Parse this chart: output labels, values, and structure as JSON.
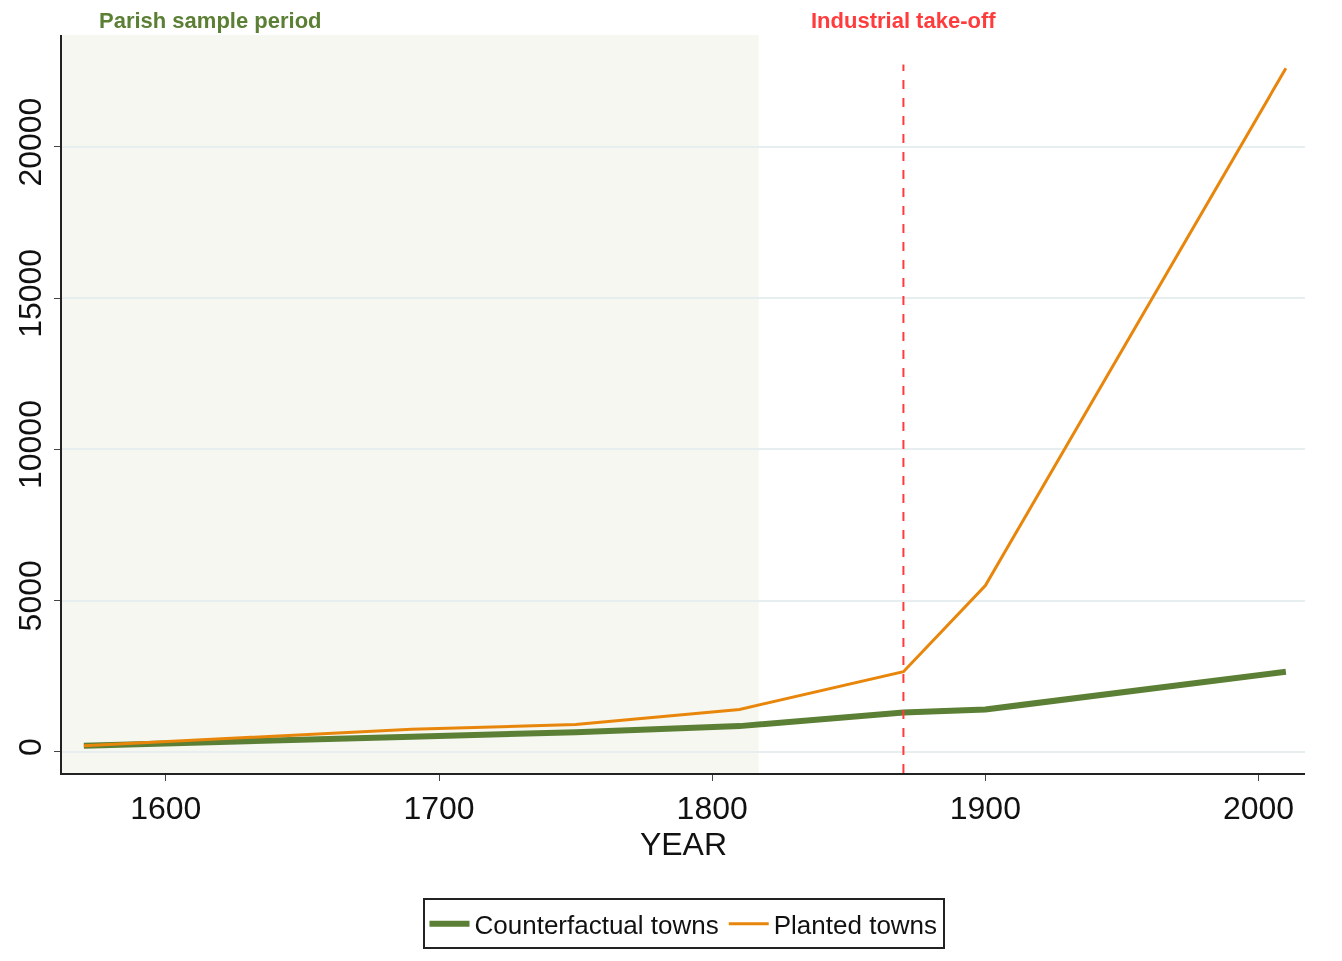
{
  "chart_data": {
    "type": "line",
    "xlabel": "YEAR",
    "x": [
      1570,
      1690,
      1750,
      1810,
      1870,
      1900,
      2010
    ],
    "series": [
      {
        "name": "Counterfactual towns",
        "color": "#5b7f34",
        "values": [
          200,
          500,
          650,
          850,
          1300,
          1400,
          2650
        ]
      },
      {
        "name": "Planted towns",
        "color": "#e8860c",
        "values": [
          200,
          750,
          900,
          1400,
          2650,
          5500,
          22600
        ]
      }
    ],
    "xlim": [
      1562,
      2017
    ],
    "xticks": [
      1600,
      1700,
      1800,
      1900,
      2000
    ],
    "ylim": [
      -700,
      23700
    ],
    "yticks": [
      0,
      5000,
      10000,
      15000,
      20000
    ],
    "grid": "y",
    "legend": "bottom",
    "marker": "none",
    "line_style": "solid",
    "bands": [
      {
        "axis": "x",
        "from": 1562,
        "to": 1817,
        "label": "Parish sample period",
        "color": "#f6f7f0"
      }
    ],
    "ref_lines": [
      {
        "axis": "x",
        "value": 1870,
        "label": "Industrial take-off",
        "color": "#ff3b3b",
        "line_style": "dashed"
      }
    ]
  }
}
